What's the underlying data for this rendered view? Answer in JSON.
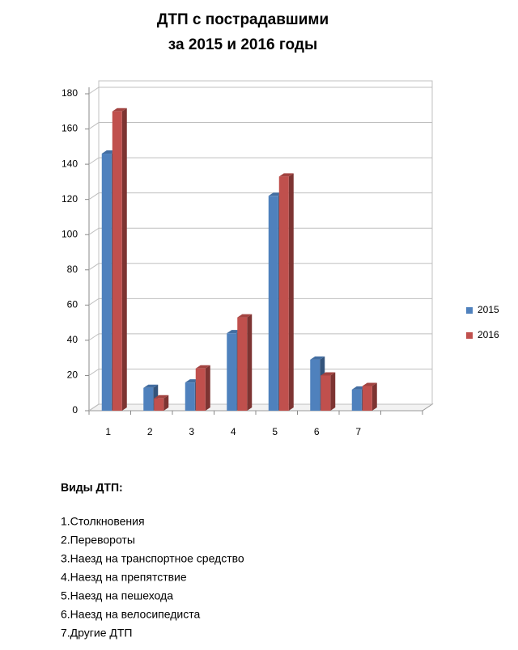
{
  "chart_data": {
    "type": "bar",
    "title": "ДТП с пострадавшими",
    "subtitle": "за 2015 и 2016 годы",
    "categories": [
      "1",
      "2",
      "3",
      "4",
      "5",
      "6",
      "7",
      null
    ],
    "series": [
      {
        "name": "2015",
        "color": "#4f81bd",
        "values": [
          146,
          13,
          16,
          44,
          122,
          29,
          12,
          null
        ]
      },
      {
        "name": "2016",
        "color": "#c0504d",
        "values": [
          170,
          7,
          24,
          53,
          133,
          20,
          14,
          null
        ]
      }
    ],
    "ylim": [
      0,
      180
    ],
    "yticks": [
      0,
      20,
      40,
      60,
      80,
      100,
      120,
      140,
      160,
      180
    ],
    "grid": true,
    "legend": "right"
  },
  "notes": {
    "title": "Виды ДТП:",
    "items": [
      "1.Столкновения",
      "2.Перевороты",
      "3.Наезд на транспортное средство",
      "4.Наезд на препятствие",
      "5.Наезд на пешехода",
      "6.Наезд на велосипедиста",
      "7.Другие ДТП"
    ]
  }
}
